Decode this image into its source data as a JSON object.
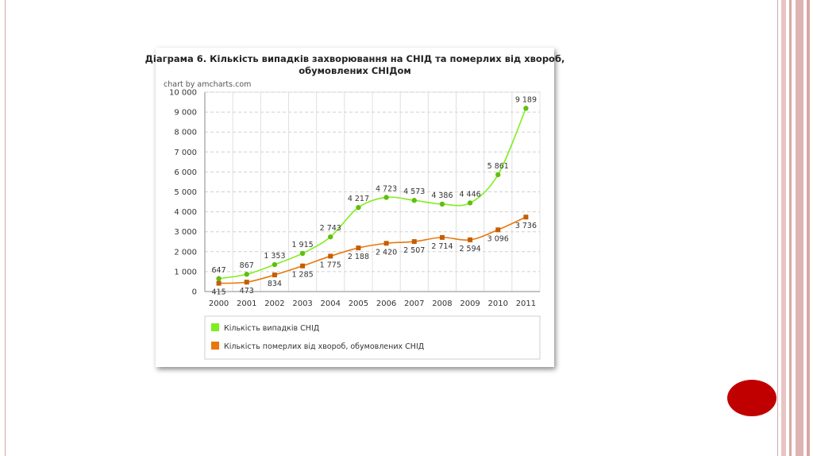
{
  "chart_data": {
    "type": "line",
    "title": "Діаграма 6. Кількість випадків захворювання на СНІД та померлих від хвороб,",
    "title_line2": "обумовлених СНІДом",
    "credit": "chart by amcharts.com",
    "categories": [
      "2000",
      "2001",
      "2002",
      "2003",
      "2004",
      "2005",
      "2006",
      "2007",
      "2008",
      "2009",
      "2010",
      "2011"
    ],
    "ylim": [
      0,
      10000
    ],
    "yticks": [
      0,
      1000,
      2000,
      3000,
      4000,
      5000,
      6000,
      7000,
      8000,
      9000,
      10000
    ],
    "ytick_labels": [
      "0",
      "1 000",
      "2 000",
      "3 000",
      "4 000",
      "5 000",
      "6 000",
      "7 000",
      "8 000",
      "9 000",
      "10 000"
    ],
    "grid": true,
    "legend_position": "bottom",
    "series": [
      {
        "name": "Кількість випадків СНІД",
        "color": "#80ee1e",
        "marker": "circle",
        "values": [
          647,
          867,
          1353,
          1915,
          2743,
          4217,
          4723,
          4573,
          4386,
          4446,
          5861,
          9189
        ],
        "labels": [
          "647",
          "867",
          "1 353",
          "1 915",
          "2 743",
          "4 217",
          "4 723",
          "4 573",
          "4 386",
          "4 446",
          "5 861",
          "9 189"
        ]
      },
      {
        "name": "Кількість померлих від хвороб, обумовлених СНІД",
        "color": "#e8770c",
        "marker": "square",
        "values": [
          415,
          473,
          834,
          1285,
          1775,
          2188,
          2420,
          2507,
          2714,
          2594,
          3096,
          3736
        ],
        "labels": [
          "415",
          "473",
          "834",
          "1 285",
          "1 775",
          "2 188",
          "2 420",
          "2 507",
          "2 714",
          "2 594",
          "3 096",
          "3 736"
        ]
      }
    ]
  },
  "decor": {
    "frame_color": "#d9a6a6",
    "accent_color": "#c00000"
  }
}
